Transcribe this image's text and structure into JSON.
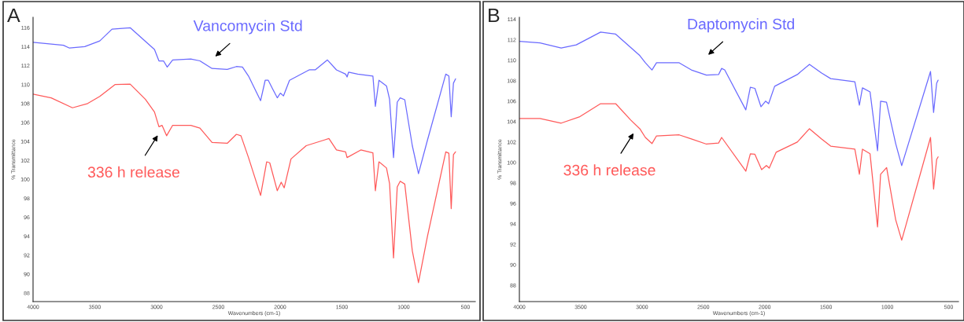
{
  "chart_data": [
    {
      "type": "line",
      "xlabel": "Wavenumbers (cm-1)",
      "ylabel": "% Transmittance",
      "xlim": [
        4000,
        420
      ],
      "ylim": [
        87.1,
        117.1
      ],
      "xticks": [
        4000,
        3500,
        3000,
        2500,
        2000,
        1500,
        1000,
        500
      ],
      "yticks": [
        88,
        90,
        92,
        94,
        96,
        98,
        100,
        102,
        104,
        106,
        108,
        110,
        112,
        114,
        116
      ],
      "grid": false,
      "legend": false,
      "marker": "none",
      "line_style": "solid",
      "annotations": [
        "A",
        "Vancomycin Std",
        "336 h release"
      ],
      "series": [
        {
          "color": "#6a6aff",
          "x": [
            4000,
            3754,
            3705,
            3582,
            3460,
            3361,
            3214,
            3017,
            2981,
            2944,
            2914,
            2870,
            2723,
            2649,
            2551,
            2428,
            2354,
            2305,
            2256,
            2158,
            2121,
            2096,
            2059,
            2023,
            1998,
            1973,
            1924,
            1765,
            1716,
            1617,
            1544,
            1470,
            1458,
            1446,
            1372,
            1249,
            1229,
            1200,
            1139,
            1114,
            1082,
            1052,
            1028,
            991,
            930,
            880,
            807,
            659,
            634,
            615,
            597,
            580
          ],
          "values": [
            114.46,
            114.15,
            113.85,
            114.0,
            114.6,
            115.85,
            116.0,
            113.7,
            112.5,
            112.5,
            111.85,
            112.6,
            112.7,
            112.5,
            111.7,
            111.6,
            111.9,
            111.85,
            110.9,
            108.3,
            110.45,
            110.45,
            109.5,
            108.6,
            109.1,
            108.8,
            110.45,
            111.55,
            111.55,
            112.6,
            111.55,
            111.1,
            110.8,
            111.3,
            111.1,
            110.9,
            107.7,
            110.45,
            109.85,
            108.45,
            102.3,
            108.15,
            108.6,
            108.4,
            103.55,
            100.6,
            104.15,
            111.1,
            110.9,
            106.6,
            110.15,
            110.6
          ]
        },
        {
          "color": "#ff5a5a",
          "x": [
            4000,
            3853,
            3681,
            3558,
            3460,
            3337,
            3214,
            3091,
            3017,
            2981,
            2956,
            2919,
            2870,
            2723,
            2649,
            2551,
            2428,
            2354,
            2317,
            2256,
            2158,
            2109,
            2084,
            2023,
            1991,
            1967,
            1912,
            1789,
            1642,
            1605,
            1544,
            1470,
            1458,
            1347,
            1249,
            1229,
            1200,
            1139,
            1114,
            1082,
            1052,
            1028,
            991,
            930,
            880,
            807,
            659,
            634,
            615,
            597,
            580
          ],
          "values": [
            109.0,
            108.6,
            107.55,
            108.0,
            108.75,
            110.0,
            110.05,
            108.45,
            107.1,
            105.55,
            105.7,
            104.6,
            105.7,
            105.7,
            105.4,
            103.9,
            103.8,
            104.75,
            104.6,
            102.3,
            98.3,
            101.85,
            101.75,
            98.8,
            99.7,
            99.1,
            102.15,
            103.55,
            104.15,
            104.3,
            103.1,
            102.9,
            102.3,
            103.1,
            102.8,
            98.8,
            101.85,
            101.2,
            99.55,
            91.7,
            99.2,
            99.8,
            99.5,
            92.45,
            89.1,
            94.0,
            102.9,
            102.75,
            96.9,
            102.6,
            102.9
          ]
        }
      ]
    },
    {
      "type": "line",
      "xlabel": "Wavenumbers (cm-1)",
      "ylabel": "% Transmittance",
      "xlim": [
        4000,
        420
      ],
      "ylim": [
        86.4,
        114.2
      ],
      "xticks": [
        4000,
        3500,
        3000,
        2500,
        2000,
        1500,
        1000,
        500
      ],
      "yticks": [
        88,
        90,
        92,
        94,
        96,
        98,
        100,
        102,
        104,
        106,
        108,
        110,
        112,
        114
      ],
      "grid": false,
      "legend": false,
      "marker": "none",
      "line_style": "solid",
      "annotations": [
        "B",
        "Daptomycin Std",
        "336 h release"
      ],
      "series": [
        {
          "color": "#6a6aff",
          "x": [
            4000,
            3832,
            3659,
            3536,
            3338,
            3215,
            3018,
            2973,
            2919,
            2882,
            2697,
            2598,
            2475,
            2376,
            2351,
            2326,
            2154,
            2117,
            2080,
            2030,
            1993,
            1968,
            1919,
            1734,
            1635,
            1536,
            1462,
            1265,
            1228,
            1203,
            1141,
            1080,
            1055,
            1007,
            932,
            883,
            648,
            623,
            598,
            586
          ],
          "values": [
            111.85,
            111.7,
            111.2,
            111.5,
            112.75,
            112.55,
            110.45,
            109.75,
            109.05,
            109.75,
            109.75,
            109.05,
            108.55,
            108.6,
            109.2,
            109.05,
            105.15,
            107.35,
            107.25,
            105.45,
            106.0,
            105.75,
            107.45,
            108.6,
            109.6,
            108.75,
            108.2,
            107.9,
            105.6,
            107.3,
            106.9,
            101.15,
            106.0,
            105.9,
            101.85,
            99.7,
            108.9,
            104.9,
            107.75,
            108.05
          ]
        },
        {
          "color": "#ff5a5a",
          "x": [
            4000,
            3832,
            3659,
            3512,
            3338,
            3215,
            3092,
            3018,
            2973,
            2919,
            2882,
            2697,
            2598,
            2475,
            2376,
            2351,
            2154,
            2117,
            2080,
            2025,
            1986,
            1963,
            1907,
            1734,
            1635,
            1536,
            1462,
            1265,
            1228,
            1203,
            1141,
            1080,
            1055,
            1006,
            932,
            883,
            648,
            623,
            598,
            586
          ],
          "values": [
            104.3,
            104.3,
            103.85,
            104.45,
            105.75,
            105.75,
            104.15,
            103.3,
            102.45,
            101.85,
            102.6,
            102.7,
            102.3,
            101.8,
            101.9,
            102.45,
            99.15,
            100.85,
            100.8,
            99.3,
            99.7,
            99.45,
            101.0,
            102.0,
            103.3,
            102.3,
            101.6,
            101.3,
            98.85,
            101.3,
            100.85,
            93.7,
            98.85,
            99.5,
            94.4,
            92.4,
            102.45,
            97.4,
            100.3,
            100.55
          ]
        }
      ]
    }
  ]
}
